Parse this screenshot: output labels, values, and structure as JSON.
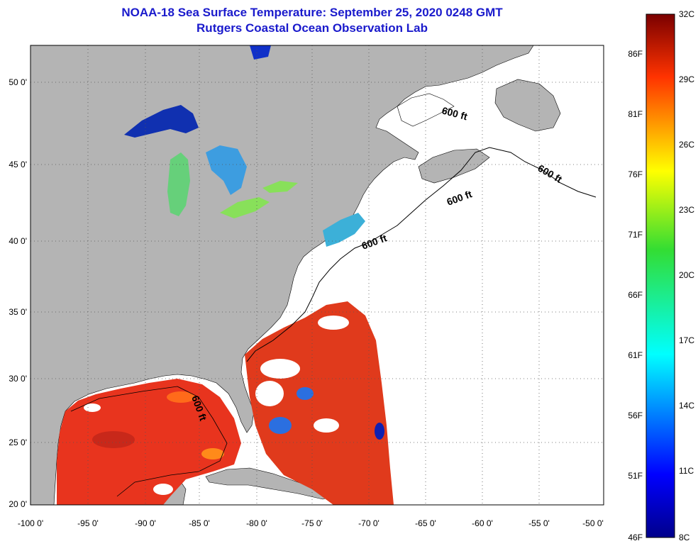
{
  "title": {
    "line1": "NOAA-18 Sea Surface Temperature:  September 25, 2020 0248 GMT",
    "line2": "Rutgers Coastal Ocean Observation Lab"
  },
  "map": {
    "lon_ticks": [
      "-100 0'",
      "-95 0'",
      "-90 0'",
      "-85 0'",
      "-80 0'",
      "-75 0'",
      "-70 0'",
      "-65 0'",
      "-60 0'",
      "-55 0'",
      "-50 0'"
    ],
    "lat_ticks": [
      "50 0'",
      "45 0'",
      "40 0'",
      "35 0'",
      "30 0'",
      "25 0'",
      "20 0'"
    ],
    "lon_range": [
      -100,
      -50
    ],
    "lat_range": [
      20,
      52.5
    ],
    "isobath_labels": [
      "600 ft",
      "600 ft",
      "600 ft",
      "600 ft",
      "600 ft"
    ],
    "colors": {
      "land": "#b4b4b4",
      "warm": "#e8341e",
      "cool": "#2b6fe0",
      "cold": "#0a1aa0",
      "mild": "#66d07a"
    }
  },
  "colorbar": {
    "celsius": [
      "32C",
      "29C",
      "26C",
      "23C",
      "20C",
      "17C",
      "14C",
      "11C",
      "8C"
    ],
    "fahrenheit": [
      "86F",
      "81F",
      "76F",
      "71F",
      "66F",
      "61F",
      "56F",
      "51F",
      "46F"
    ],
    "range_c": [
      8,
      32
    ],
    "colormap": "jet"
  }
}
